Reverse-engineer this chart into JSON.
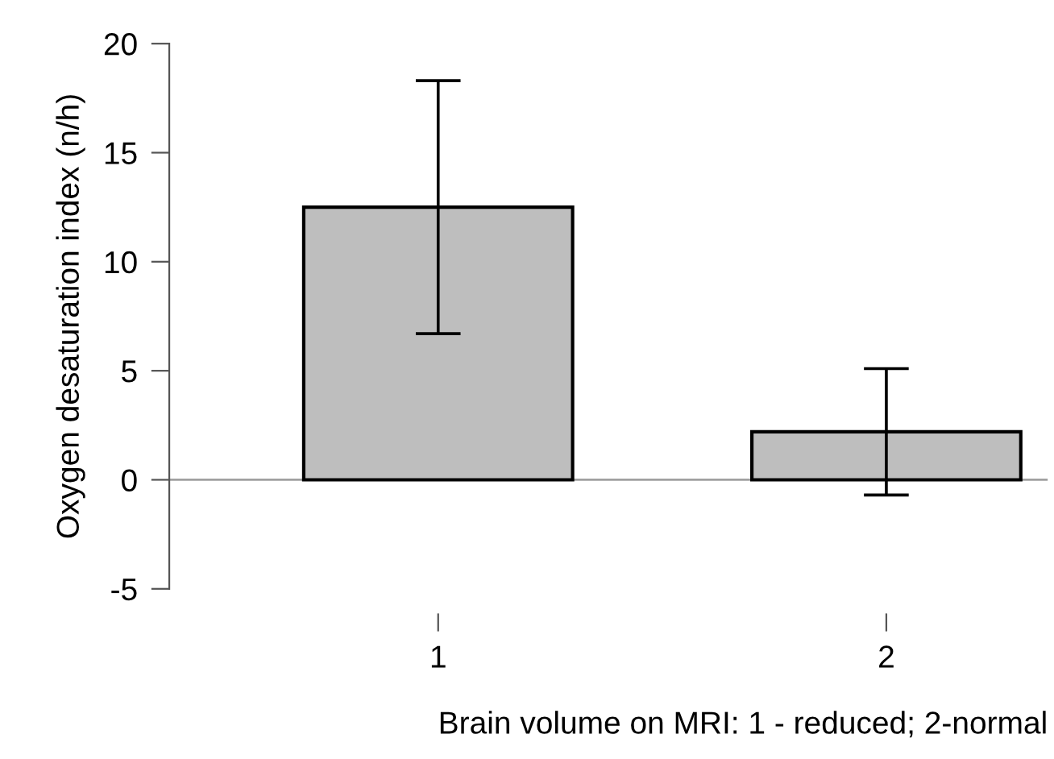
{
  "chart_data": {
    "type": "bar",
    "xlabel": "Brain volume on MRI: 1 - reduced; 2-normal",
    "ylabel": "Oxygen desaturation index (n/h)",
    "categories": [
      "1",
      "2"
    ],
    "series": [
      {
        "color": "#bebebe",
        "values": [
          12.5,
          2.2
        ],
        "errors": [
          [
            6.7,
            18.3
          ],
          [
            -0.7,
            5.1
          ]
        ]
      }
    ],
    "ylim": [
      -5,
      20
    ],
    "yticks": [
      -5,
      0,
      5,
      10,
      15,
      20
    ],
    "grid": false,
    "legend": false,
    "ref_lines": [
      {
        "axis": "y",
        "value": 0,
        "color": "#a0a0a0"
      }
    ]
  }
}
